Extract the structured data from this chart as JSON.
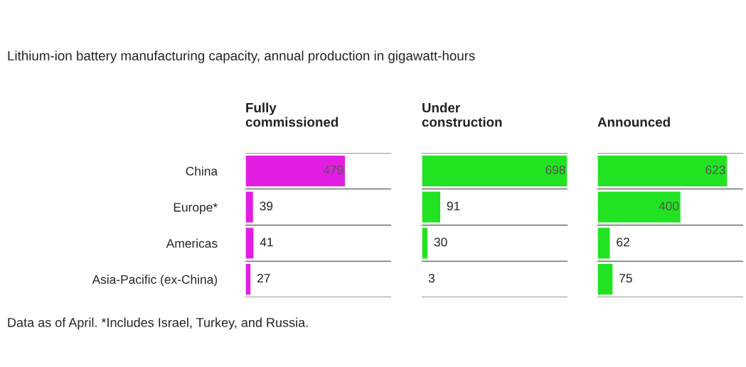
{
  "chart_data": [
    {
      "type": "bar",
      "orientation": "horizontal",
      "title": "Lithium-ion battery manufacturing capacity, annual production in gigawatt-hours",
      "subtitle": "Fully\ncommissioned",
      "categories": [
        "China",
        "Europe*",
        "Americas",
        "Asia-Pacific (ex-China)"
      ],
      "values": [
        479,
        39,
        41,
        27
      ],
      "color": "#e31ee3",
      "data_labels": true,
      "tick_labels": "y",
      "annotations": [
        "Data as of April. *Includes Israel, Turkey, and Russia."
      ]
    },
    {
      "type": "bar",
      "orientation": "horizontal",
      "subtitle": "Under\nconstruction",
      "categories": [
        null,
        null,
        null,
        null
      ],
      "values": [
        698,
        91,
        30,
        3
      ],
      "color": "#22e322",
      "data_labels": true,
      "tick_labels": false
    },
    {
      "type": "bar",
      "orientation": "horizontal",
      "subtitle": "Announced",
      "categories": [
        null,
        null,
        null,
        null
      ],
      "values": [
        623,
        400,
        62,
        75
      ],
      "color": "#22e322",
      "data_labels": true,
      "tick_labels": false
    }
  ]
}
